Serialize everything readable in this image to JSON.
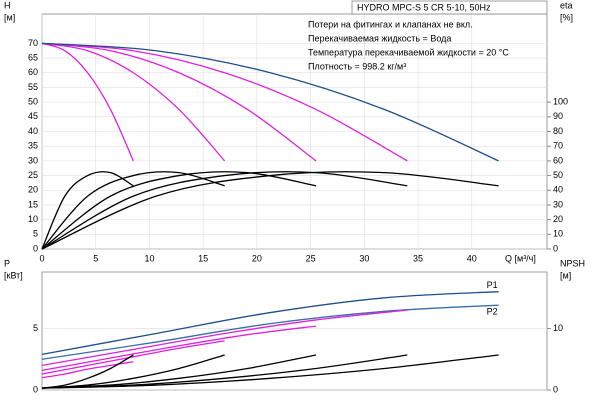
{
  "chart_data": [
    {
      "type": "line",
      "title": "HYDRO MPC-S 5 CR 5-10, 50Hz",
      "annotations": [
        "Потери на фитингах и клапанах не вкл.",
        "Перекачиваемая жидкость = Вода",
        "Температура перекачиваемой жидкости = 20 °C",
        "Плотность = 998.2 кг/м³"
      ],
      "y_label": [
        "H",
        "[м]"
      ],
      "y2_label": [
        "eta",
        "[%]"
      ],
      "x_label": "Q [м³/ч]",
      "xlim": [
        0,
        47
      ],
      "xticks": [
        0,
        5,
        10,
        15,
        20,
        25,
        30,
        35,
        40
      ],
      "ylim": [
        0,
        80
      ],
      "yticks": [
        0,
        5,
        10,
        15,
        20,
        25,
        30,
        35,
        40,
        45,
        50,
        55,
        60,
        65,
        70
      ],
      "y2lim": [
        0,
        160
      ],
      "y2ticks": [
        0,
        10,
        20,
        30,
        40,
        50,
        60,
        70,
        80,
        90,
        100
      ],
      "series": [
        {
          "color": "#e020e0",
          "x": [
            0,
            2.125,
            4.25,
            6.375,
            8.5
          ],
          "values": [
            70,
            67.5,
            60,
            47.5,
            30
          ]
        },
        {
          "color": "#e020e0",
          "x": [
            0,
            4.25,
            8.5,
            12.75,
            17
          ],
          "values": [
            70,
            67.5,
            60,
            47.5,
            30
          ]
        },
        {
          "color": "#e020e0",
          "x": [
            0,
            6.375,
            12.75,
            19.125,
            25.5
          ],
          "values": [
            70,
            67.5,
            60,
            47.5,
            30
          ]
        },
        {
          "color": "#e020e0",
          "x": [
            0,
            8.5,
            17,
            25.5,
            34
          ],
          "values": [
            70,
            67.5,
            60,
            47.5,
            30
          ]
        },
        {
          "color": "#1f4e8c",
          "x": [
            0,
            10.625,
            21.25,
            31.875,
            42.5
          ],
          "values": [
            70,
            67.5,
            60,
            47.5,
            30
          ]
        },
        {
          "color": "#000000",
          "axis": "y2",
          "x": [
            0,
            2.125,
            4.25,
            6.375,
            8.5
          ],
          "values": [
            0,
            36,
            50,
            52,
            43
          ]
        },
        {
          "color": "#000000",
          "axis": "y2",
          "x": [
            0,
            4.25,
            8.5,
            12.75,
            17
          ],
          "values": [
            0,
            36,
            50,
            52,
            43
          ]
        },
        {
          "color": "#000000",
          "axis": "y2",
          "x": [
            0,
            6.375,
            12.75,
            19.125,
            25.5
          ],
          "values": [
            0,
            36,
            50,
            52,
            43
          ]
        },
        {
          "color": "#000000",
          "axis": "y2",
          "x": [
            0,
            8.5,
            17,
            25.5,
            34
          ],
          "values": [
            0,
            36,
            50,
            52,
            43
          ]
        },
        {
          "color": "#000000",
          "axis": "y2",
          "x": [
            0,
            10.625,
            21.25,
            31.875,
            42.5
          ],
          "values": [
            0,
            36,
            50,
            52,
            43
          ]
        }
      ]
    },
    {
      "type": "line",
      "y_label": [
        "P",
        "[кВт]"
      ],
      "y2_label": [
        "NPSH",
        "[м]"
      ],
      "xlim": [
        0,
        47
      ],
      "ylim": [
        0,
        9.6
      ],
      "yticks": [
        0,
        5
      ],
      "y2lim": [
        0,
        19.2
      ],
      "y2ticks": [
        0,
        10
      ],
      "series": [
        {
          "name": "P1",
          "color": "#1f4e8c",
          "x": [
            0,
            10.625,
            21.25,
            31.875,
            42.5
          ],
          "values": [
            2.9,
            4.6,
            6.3,
            7.5,
            8.0
          ]
        },
        {
          "name": "P2",
          "color": "#3a6ea5",
          "x": [
            0,
            10.625,
            21.25,
            31.875,
            42.5
          ],
          "values": [
            2.5,
            3.9,
            5.4,
            6.4,
            6.9
          ]
        },
        {
          "color": "#e020e0",
          "x": [
            0,
            2.125,
            4.25,
            6.375,
            8.5
          ],
          "values": [
            1.0,
            1.3,
            1.7,
            2.0,
            2.3
          ]
        },
        {
          "color": "#e020e0",
          "x": [
            0,
            4.25,
            8.5,
            12.75,
            17
          ],
          "values": [
            1.3,
            2.0,
            2.7,
            3.4,
            4.0
          ]
        },
        {
          "color": "#e020e0",
          "x": [
            0,
            6.375,
            12.75,
            19.125,
            25.5
          ],
          "values": [
            1.6,
            2.6,
            3.6,
            4.5,
            5.2
          ]
        },
        {
          "color": "#e020e0",
          "x": [
            0,
            8.5,
            17,
            25.5,
            34
          ],
          "values": [
            2.0,
            3.3,
            4.6,
            5.7,
            6.5
          ]
        },
        {
          "color": "#000000",
          "axis": "y2",
          "x": [
            0,
            2.125,
            4.25,
            6.375,
            8.5
          ],
          "values": [
            0.3,
            0.8,
            1.9,
            3.5,
            5.7
          ]
        },
        {
          "color": "#000000",
          "axis": "y2",
          "x": [
            0,
            4.25,
            8.5,
            12.75,
            17
          ],
          "values": [
            0.3,
            0.8,
            1.9,
            3.5,
            5.7
          ]
        },
        {
          "color": "#000000",
          "axis": "y2",
          "x": [
            0,
            6.375,
            12.75,
            19.125,
            25.5
          ],
          "values": [
            0.3,
            0.8,
            1.9,
            3.5,
            5.7
          ]
        },
        {
          "color": "#000000",
          "axis": "y2",
          "x": [
            0,
            8.5,
            17,
            25.5,
            34
          ],
          "values": [
            0.3,
            0.8,
            1.9,
            3.5,
            5.7
          ]
        },
        {
          "color": "#000000",
          "axis": "y2",
          "x": [
            0,
            10.625,
            21.25,
            31.875,
            42.5
          ],
          "values": [
            0.3,
            0.8,
            1.9,
            3.5,
            5.7
          ]
        }
      ]
    }
  ]
}
